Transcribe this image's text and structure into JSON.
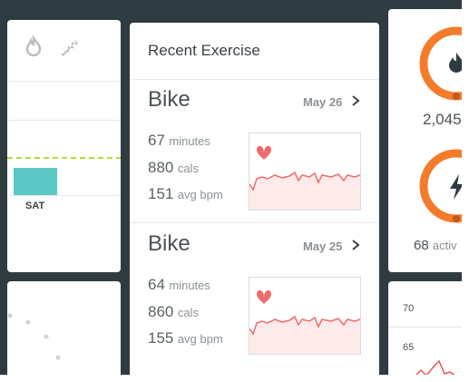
{
  "left_panel": {
    "day_label": "SAT"
  },
  "recent_exercise": {
    "title": "Recent Exercise",
    "entries": [
      {
        "activity": "Bike",
        "date": "May 26",
        "duration": "67",
        "duration_unit": "minutes",
        "calories": "880",
        "calories_unit": "cals",
        "heart_rate": "151",
        "heart_rate_unit": "avg bpm"
      },
      {
        "activity": "Bike",
        "date": "May 25",
        "duration": "64",
        "duration_unit": "minutes",
        "calories": "860",
        "calories_unit": "cals",
        "heart_rate": "155",
        "heart_rate_unit": "avg bpm"
      }
    ]
  },
  "right_panel": {
    "calories_value": "2,045",
    "active_value": "68",
    "active_label": "activ"
  },
  "heart_panel": {
    "labels": [
      "70",
      "65"
    ]
  }
}
